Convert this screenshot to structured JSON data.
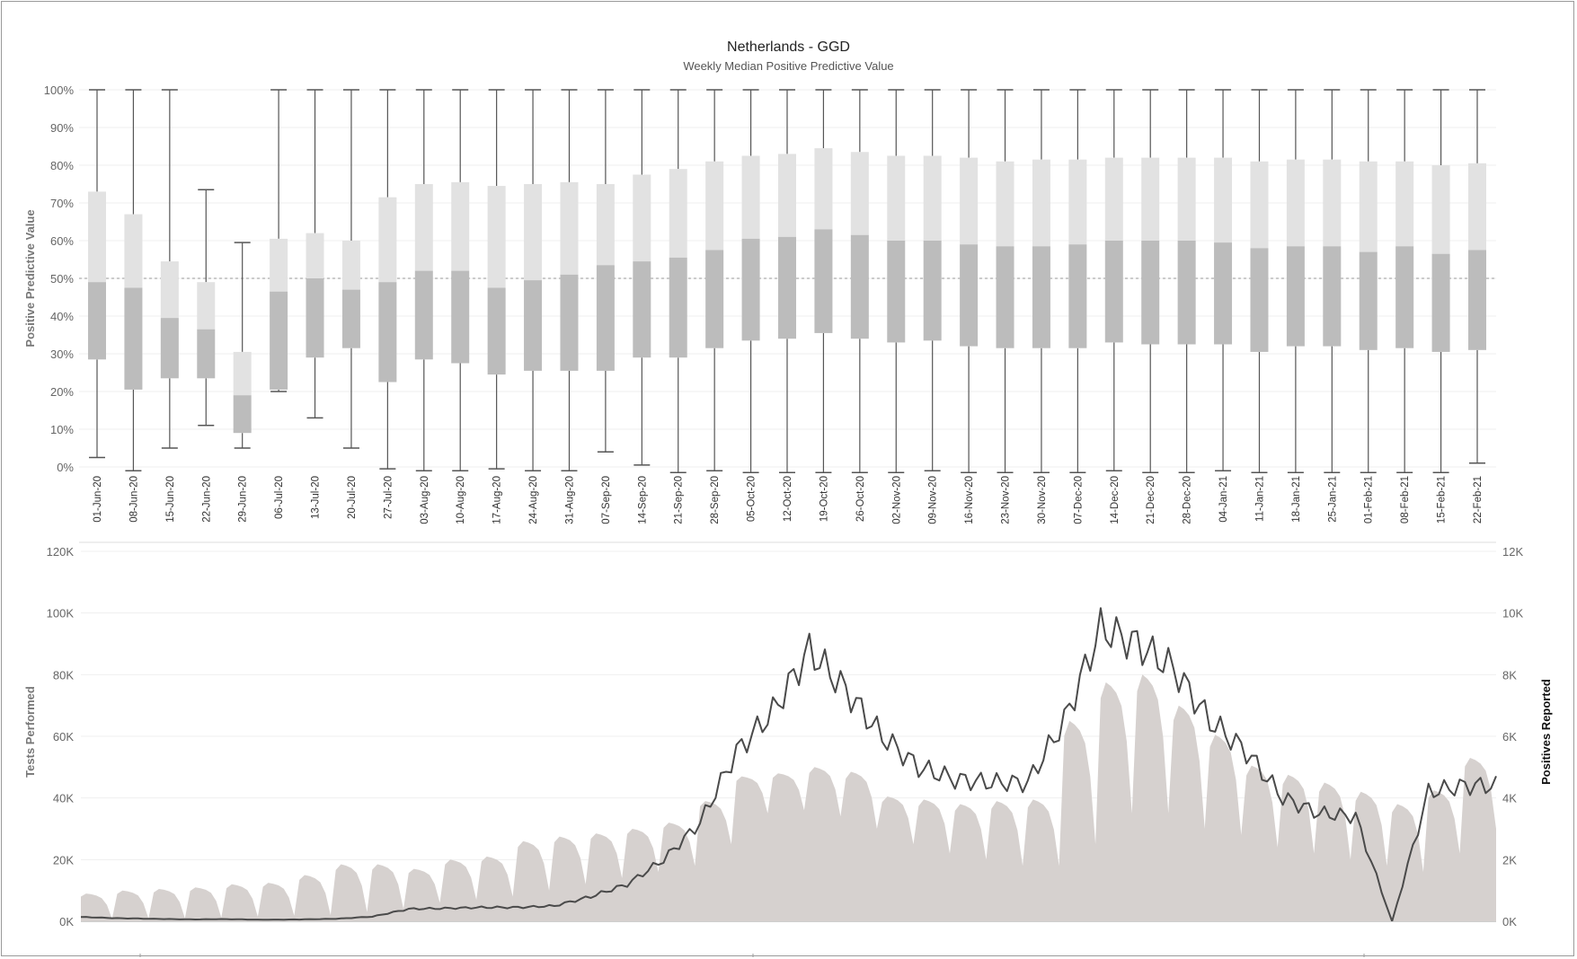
{
  "chart_data": [
    {
      "type": "boxplot",
      "title": "Netherlands - GGD",
      "subtitle": "Weekly Median Positive Predictive Value",
      "ylabel": "Positive Predictive Value",
      "ylim": [
        0,
        100
      ],
      "yticks": [
        "0%",
        "10%",
        "20%",
        "30%",
        "40%",
        "50%",
        "60%",
        "70%",
        "80%",
        "90%",
        "100%"
      ],
      "reference_line": 50,
      "categories": [
        "01-Jun-20",
        "08-Jun-20",
        "15-Jun-20",
        "22-Jun-20",
        "29-Jun-20",
        "06-Jul-20",
        "13-Jul-20",
        "20-Jul-20",
        "27-Jul-20",
        "03-Aug-20",
        "10-Aug-20",
        "17-Aug-20",
        "24-Aug-20",
        "31-Aug-20",
        "07-Sep-20",
        "14-Sep-20",
        "21-Sep-20",
        "28-Sep-20",
        "05-Oct-20",
        "12-Oct-20",
        "19-Oct-20",
        "26-Oct-20",
        "02-Nov-20",
        "09-Nov-20",
        "16-Nov-20",
        "23-Nov-20",
        "30-Nov-20",
        "07-Dec-20",
        "14-Dec-20",
        "21-Dec-20",
        "28-Dec-20",
        "04-Jan-21",
        "11-Jan-21",
        "18-Jan-21",
        "25-Jan-21",
        "01-Feb-21",
        "08-Feb-21",
        "15-Feb-21",
        "22-Feb-21"
      ],
      "whisker_low": [
        2.5,
        -1,
        5,
        11,
        5,
        20,
        13,
        5,
        -0.5,
        -1,
        -1,
        -0.5,
        -1,
        -1,
        4,
        0.5,
        -1.5,
        -1,
        -1.5,
        -1.5,
        -1.5,
        -1.5,
        -1.5,
        -1,
        -1.5,
        -1.5,
        -1.5,
        -1.5,
        -1,
        -1.5,
        -1.5,
        -1,
        -1.5,
        -1.5,
        -1.5,
        -1.5,
        -1.5,
        -1.5,
        1
      ],
      "q1": [
        28.5,
        20.5,
        23.5,
        23.5,
        9,
        20.5,
        29,
        31.5,
        22.5,
        28.5,
        27.5,
        24.5,
        25.5,
        25.5,
        25.5,
        29,
        29,
        31.5,
        33.5,
        34,
        35.5,
        34,
        33,
        33.5,
        32,
        31.5,
        31.5,
        31.5,
        33,
        32.5,
        32.5,
        32.5,
        30.5,
        32,
        32,
        31,
        31.5,
        30.5,
        31
      ],
      "median": [
        49,
        47.5,
        39.5,
        36.5,
        19,
        46.5,
        50,
        47,
        49,
        52,
        52,
        47.5,
        49.5,
        51,
        53.5,
        54.5,
        55.5,
        57.5,
        60.5,
        61,
        63,
        61.5,
        60,
        60,
        59,
        58.5,
        58.5,
        59,
        60,
        60,
        60,
        59.5,
        58,
        58.5,
        58.5,
        57,
        58.5,
        56.5,
        57.5
      ],
      "q3": [
        73,
        67,
        54.5,
        49,
        30.5,
        60.5,
        62,
        60,
        71.5,
        75,
        75.5,
        74.5,
        75,
        75.5,
        75,
        77.5,
        79,
        81,
        82.5,
        83,
        84.5,
        83.5,
        82.5,
        82.5,
        82,
        81,
        81.5,
        81.5,
        82,
        82,
        82,
        82,
        81,
        81.5,
        81.5,
        81,
        81,
        80,
        80.5
      ],
      "whisker_high": [
        100,
        100,
        100,
        73.5,
        59.5,
        100,
        100,
        100,
        100,
        100,
        100,
        100,
        100,
        100,
        100,
        100,
        100,
        100,
        100,
        100,
        100,
        100,
        100,
        100,
        100,
        100,
        100,
        100,
        100,
        100,
        100,
        100,
        100,
        100,
        100,
        100,
        100,
        100,
        100
      ]
    },
    {
      "type": "area+line",
      "xlim": [
        "2020-06-01",
        "2021-02-28"
      ],
      "ylabel": "Tests Performed",
      "ylim": [
        0,
        120000
      ],
      "yticks": [
        "0K",
        "20K",
        "40K",
        "60K",
        "80K",
        "100K",
        "120K"
      ],
      "y2label": "Positives Reported",
      "y2lim": [
        0,
        12000
      ],
      "y2ticks": [
        "0K",
        "2K",
        "4K",
        "6K",
        "8K",
        "10K",
        "12K"
      ],
      "series": [
        {
          "type": "area",
          "axis": "left",
          "weekly_peak": [
            9000,
            10000,
            10500,
            11000,
            12000,
            12500,
            15000,
            18500,
            18500,
            17000,
            20000,
            21000,
            26000,
            27500,
            28500,
            30000,
            32000,
            39000,
            47000,
            48000,
            50000,
            48500,
            40500,
            39500,
            38000,
            39000,
            39500,
            65000,
            77500,
            80000,
            70000,
            60500,
            50500,
            47500,
            45000,
            42000,
            38000,
            42500,
            53000
          ],
          "weekly_trough": [
            800,
            900,
            1000,
            1200,
            1500,
            1800,
            2000,
            3000,
            4000,
            6000,
            7000,
            8000,
            10000,
            12000,
            14000,
            16000,
            18000,
            25000,
            35000,
            36000,
            34000,
            30000,
            25000,
            22000,
            20000,
            18000,
            18000,
            25000,
            35000,
            35000,
            30000,
            28000,
            24000,
            22000,
            20000,
            18000,
            16000,
            22000,
            30000
          ]
        },
        {
          "type": "line",
          "axis": "right",
          "weekly_values": [
            140,
            100,
            80,
            60,
            70,
            50,
            60,
            80,
            150,
            400,
            420,
            450,
            450,
            500,
            800,
            1200,
            2000,
            3200,
            5500,
            6800,
            8800,
            7500,
            6000,
            5000,
            4600,
            4500,
            4500,
            6500,
            9500,
            9000,
            8200,
            6500,
            5500,
            4000,
            3500,
            3400,
            0,
            4200,
            4400
          ]
        }
      ]
    }
  ]
}
